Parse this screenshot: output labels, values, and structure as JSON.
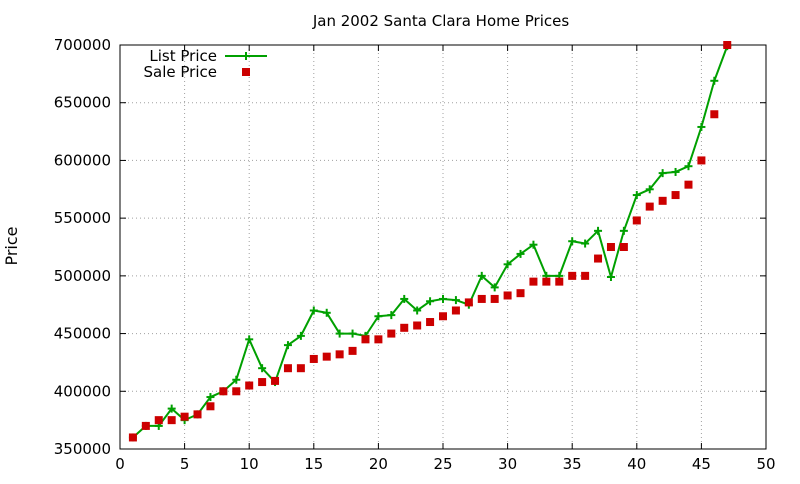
{
  "chart_data": {
    "type": "line",
    "title": "Jan 2002 Santa Clara Home Prices",
    "xlabel": "",
    "ylabel": "Price",
    "xlim": [
      0,
      50
    ],
    "ylim": [
      350000,
      700000
    ],
    "x_ticks": [
      0,
      5,
      10,
      15,
      20,
      25,
      30,
      35,
      40,
      45,
      50
    ],
    "y_ticks": [
      350000,
      400000,
      450000,
      500000,
      550000,
      600000,
      650000,
      700000
    ],
    "grid": true,
    "legend_position": "top-left",
    "series": [
      {
        "name": "List Price",
        "style": "linespoints",
        "color": "#00a000",
        "marker": "plus",
        "x": [
          1,
          2,
          3,
          4,
          5,
          6,
          7,
          8,
          9,
          10,
          11,
          12,
          13,
          14,
          15,
          16,
          17,
          18,
          19,
          20,
          21,
          22,
          23,
          24,
          25,
          26,
          27,
          28,
          29,
          30,
          31,
          32,
          33,
          34,
          35,
          36,
          37,
          38,
          39,
          40,
          41,
          42,
          43,
          44,
          45,
          46,
          47
        ],
        "values": [
          360000,
          370000,
          370000,
          385000,
          375000,
          380000,
          395000,
          400000,
          410000,
          445000,
          420000,
          408000,
          440000,
          448000,
          470000,
          468000,
          450000,
          450000,
          448000,
          465000,
          466000,
          480000,
          470000,
          478000,
          480000,
          479000,
          475000,
          500000,
          490000,
          510000,
          519000,
          527000,
          500000,
          500000,
          530000,
          528000,
          539000,
          499000,
          539000,
          570000,
          575000,
          589000,
          590000,
          595000,
          629000,
          669000,
          699000
        ]
      },
      {
        "name": "Sale Price",
        "style": "points",
        "color": "#cc0000",
        "marker": "square",
        "x": [
          1,
          2,
          3,
          4,
          5,
          6,
          7,
          8,
          9,
          10,
          11,
          12,
          13,
          14,
          15,
          16,
          17,
          18,
          19,
          20,
          21,
          22,
          23,
          24,
          25,
          26,
          27,
          28,
          29,
          30,
          31,
          32,
          33,
          34,
          35,
          36,
          37,
          38,
          39,
          40,
          41,
          42,
          43,
          44,
          45,
          46,
          47
        ],
        "values": [
          360000,
          370000,
          375000,
          375000,
          378000,
          380000,
          387000,
          400000,
          400000,
          405000,
          408000,
          409000,
          420000,
          420000,
          428000,
          430000,
          432000,
          435000,
          445000,
          445000,
          450000,
          455000,
          457000,
          460000,
          465000,
          470000,
          477000,
          480000,
          480000,
          483000,
          485000,
          495000,
          495000,
          495000,
          500000,
          500000,
          515000,
          525000,
          525000,
          548000,
          560000,
          565000,
          570000,
          579000,
          600000,
          640000,
          700000
        ]
      }
    ]
  }
}
